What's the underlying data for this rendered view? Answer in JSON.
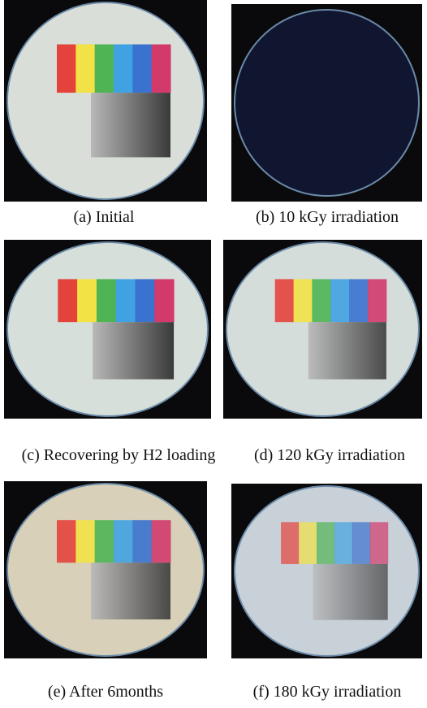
{
  "panels": [
    {
      "caption": "(a) Initial"
    },
    {
      "caption": "(b) 10 kGy irradiation"
    },
    {
      "caption": "(c) Recovering by H2 loading"
    },
    {
      "caption": "(d) 120 kGy irradiation"
    },
    {
      "caption": "(e) After 6months"
    },
    {
      "caption": "(f) 180 kGy irradiation"
    }
  ]
}
